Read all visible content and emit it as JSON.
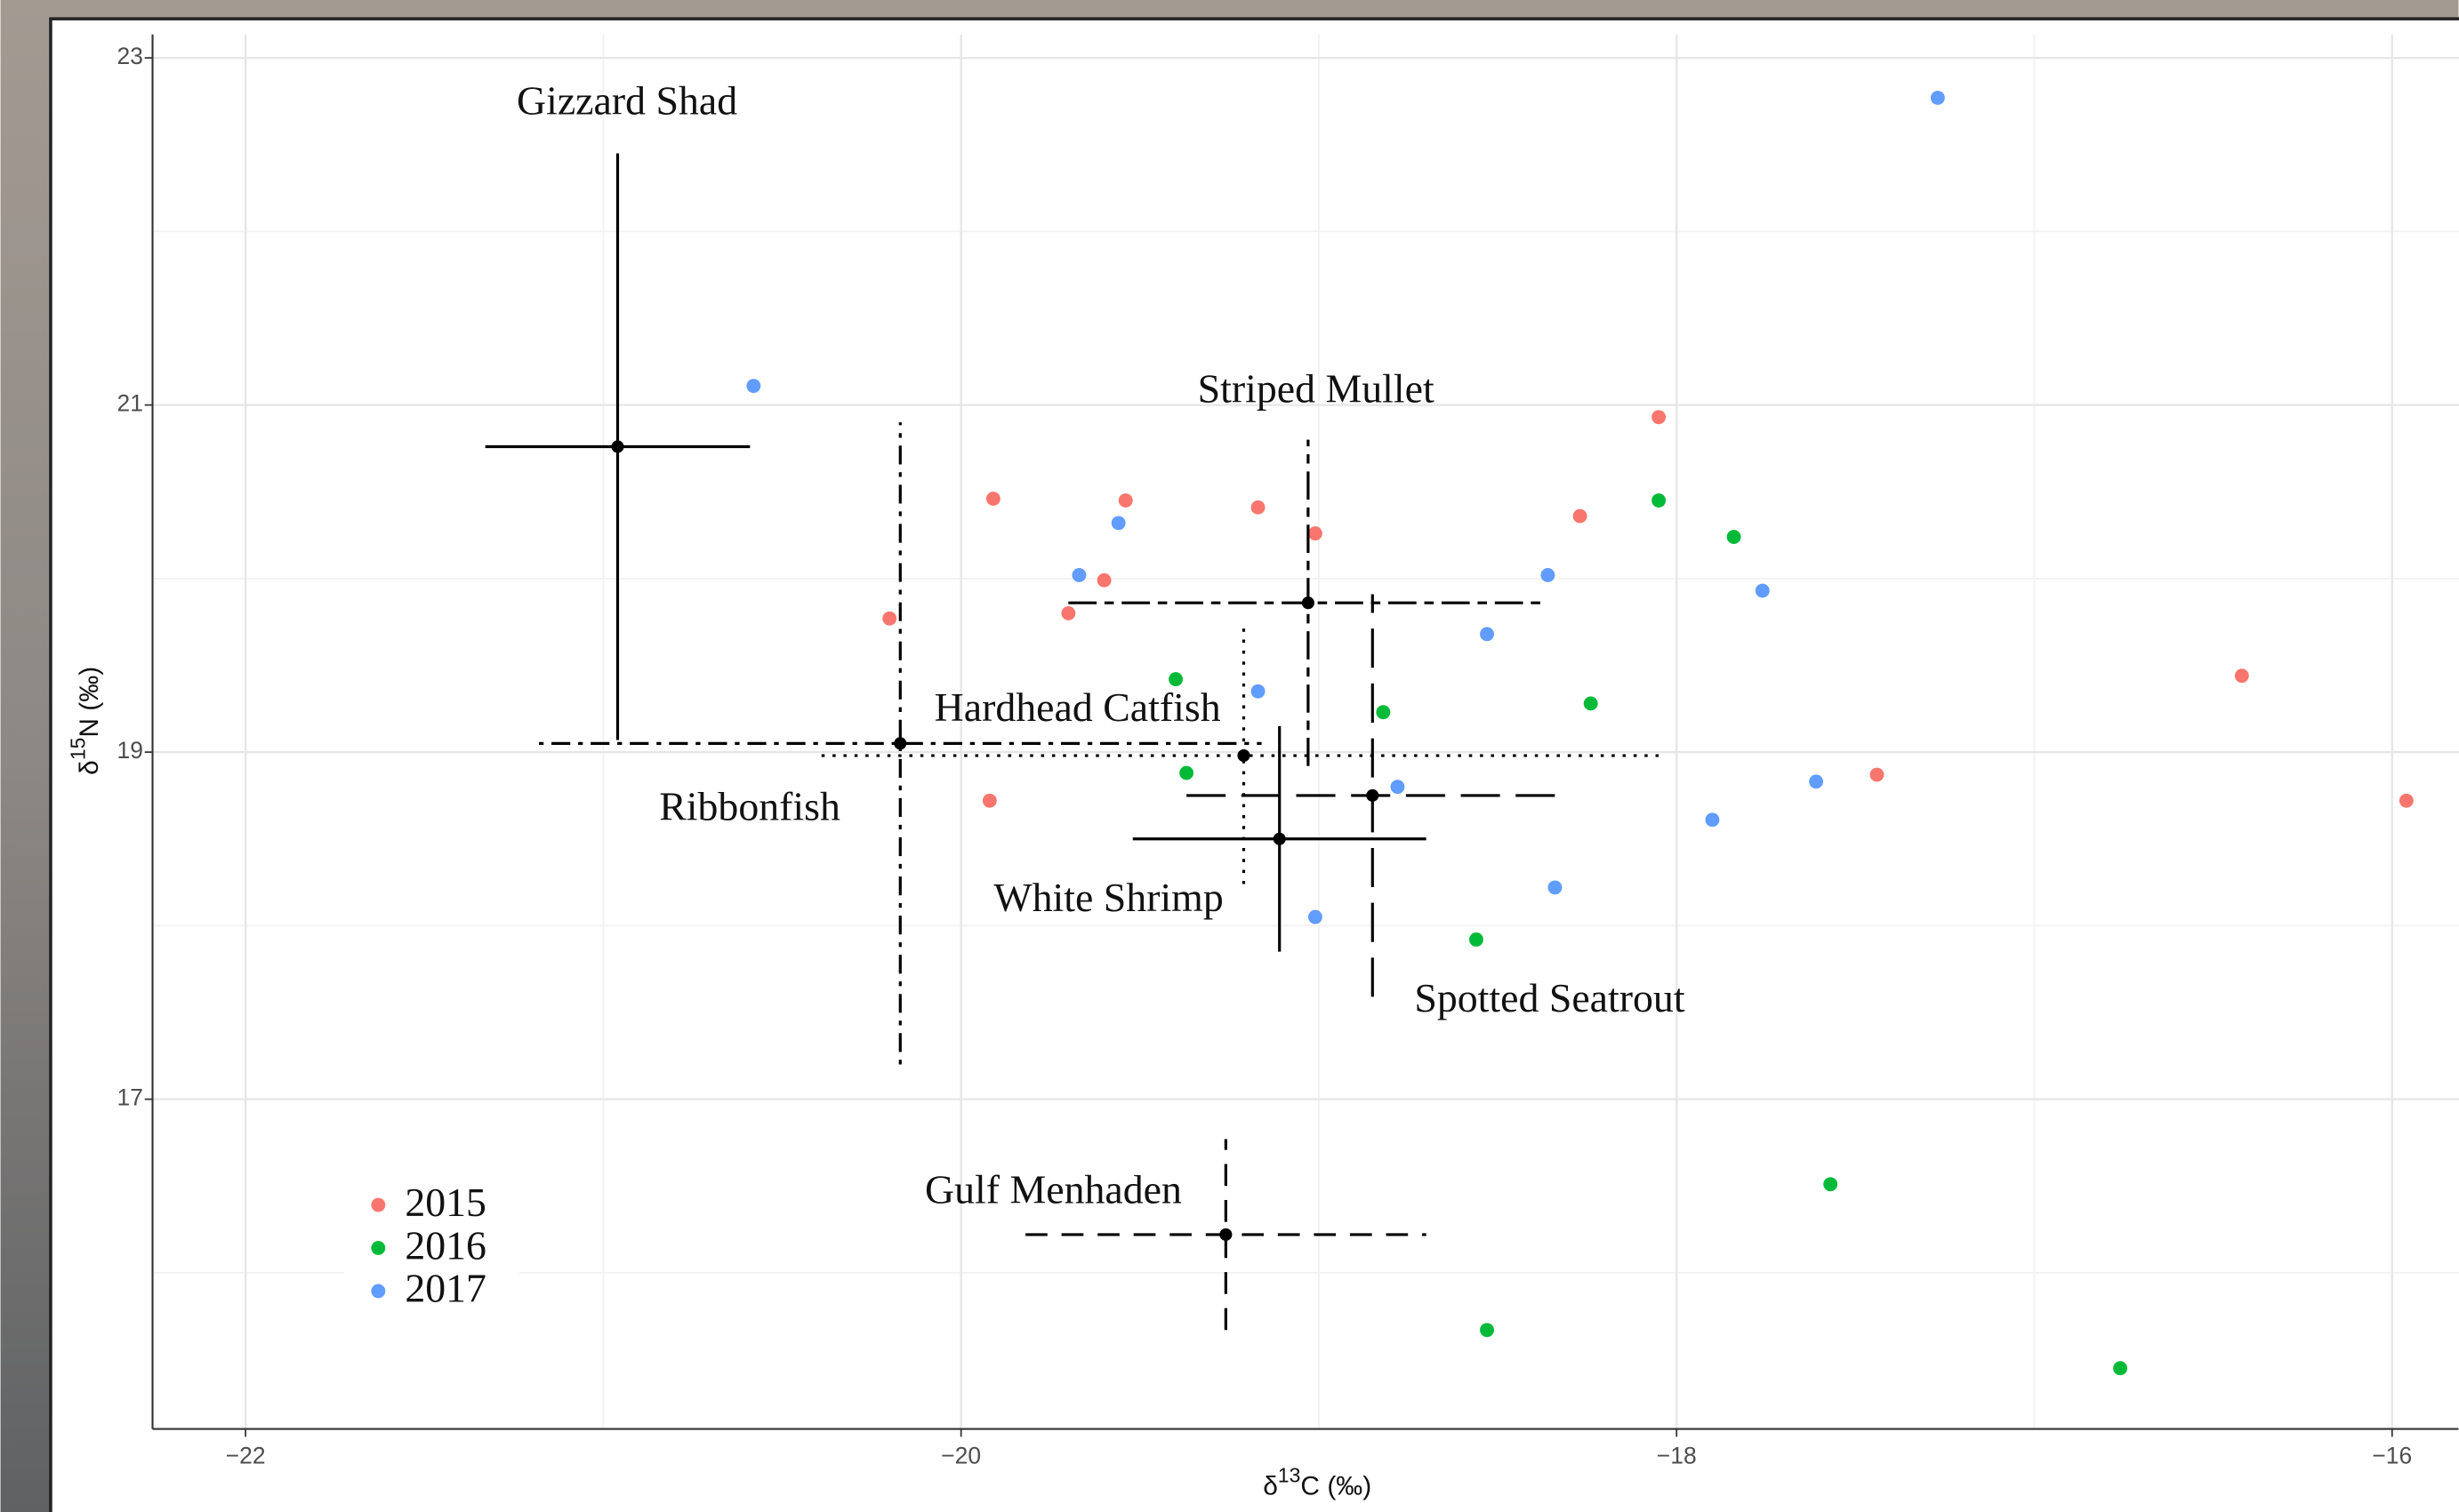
{
  "chart_data": {
    "type": "scatter",
    "xlabel": [
      "δ",
      "13",
      "C (‰)"
    ],
    "ylabel": [
      "δ",
      "15",
      "N (‰)"
    ],
    "xlim": [
      -22.26,
      -15.81
    ],
    "ylim": [
      15.1,
      23.135
    ],
    "xticks": [
      {
        "value": -22,
        "label": "−22"
      },
      {
        "value": -20,
        "label": "−20"
      },
      {
        "value": -18,
        "label": "−18"
      },
      {
        "value": -16,
        "label": "−16"
      }
    ],
    "yticks": [
      17,
      19,
      21,
      23
    ],
    "minor_xticks": [
      -21,
      -19,
      -17
    ],
    "minor_yticks": [
      16,
      18,
      20,
      22
    ],
    "grid": true,
    "legend": "bottom-left",
    "series": [
      {
        "name": "2015",
        "color": "#f8766d",
        "x": [
          -19.91,
          -19.54,
          -19.17,
          -19.01,
          -19.6,
          -19.7,
          -20.2,
          -18.05,
          -18.27,
          -19.92,
          -17.44,
          -16.42,
          -15.96
        ],
        "y": [
          20.46,
          20.45,
          20.41,
          20.26,
          19.99,
          19.8,
          19.77,
          20.93,
          20.36,
          18.72,
          18.87,
          19.44,
          18.72
        ]
      },
      {
        "name": "2016",
        "color": "#00ba38",
        "x": [
          -18.05,
          -17.84,
          -19.4,
          -18.82,
          -18.24,
          -19.37,
          -18.56,
          -17.57,
          -18.53,
          -16.76
        ],
        "y": [
          20.45,
          20.24,
          19.42,
          19.23,
          19.28,
          18.88,
          17.92,
          16.51,
          15.67,
          15.45
        ]
      },
      {
        "name": "2017",
        "color": "#619cff",
        "x": [
          -17.27,
          -20.58,
          -19.56,
          -19.67,
          -19.17,
          -18.36,
          -18.53,
          -17.76,
          -18.78,
          -17.9,
          -17.61,
          -18.34,
          -19.01
        ],
        "y": [
          22.77,
          21.11,
          20.32,
          20.02,
          19.35,
          20.02,
          19.68,
          19.93,
          18.8,
          18.61,
          18.83,
          18.22,
          18.05
        ]
      }
    ],
    "error_bars": [
      {
        "name": "Gizzard Shad",
        "x": -20.96,
        "y": 20.76,
        "xerr": 0.37,
        "yerr": 1.69,
        "linestyle": "solid"
      },
      {
        "name": "Ribbonfish",
        "x": -20.17,
        "y": 19.05,
        "xerr": 1.01,
        "yerr": 1.85,
        "linestyle": "dotdash"
      },
      {
        "name": "Hardhead Catfish",
        "x": -19.21,
        "y": 18.98,
        "xerr": 1.18,
        "yerr": 0.74,
        "linestyle": "dotted"
      },
      {
        "name": "Striped Mullet",
        "x": -19.03,
        "y": 19.86,
        "xerr": 0.67,
        "yerr": 0.94,
        "linestyle": "twodash"
      },
      {
        "name": "Spotted Seatrout",
        "x": -18.85,
        "y": 18.75,
        "xerr": 0.52,
        "yerr": 1.16,
        "linestyle": "longdash"
      },
      {
        "name": "White Shrimp",
        "x": -19.11,
        "y": 18.5,
        "xerr": 0.41,
        "yerr": 0.65,
        "linestyle": "solid"
      },
      {
        "name": "Gulf Menhaden",
        "x": -19.26,
        "y": 16.22,
        "xerr": 0.56,
        "yerr": 0.55,
        "linestyle": "dashed"
      }
    ]
  }
}
